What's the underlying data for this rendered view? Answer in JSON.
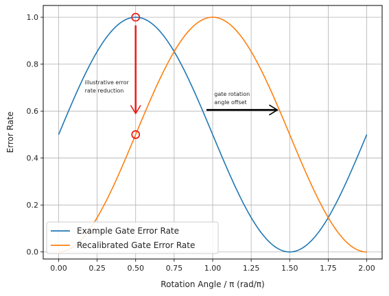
{
  "chart_data": {
    "type": "line",
    "title": "",
    "xlabel": "Rotation Angle / π (rad/π)",
    "ylabel": "Error Rate",
    "xlim": [
      -0.1,
      2.1
    ],
    "ylim": [
      -0.03,
      1.05
    ],
    "xticks": [
      0.0,
      0.25,
      0.5,
      0.75,
      1.0,
      1.25,
      1.5,
      1.75,
      2.0
    ],
    "xtick_labels": [
      "0.00",
      "0.25",
      "0.50",
      "0.75",
      "1.00",
      "1.25",
      "1.50",
      "1.75",
      "2.00"
    ],
    "yticks": [
      0.0,
      0.2,
      0.4,
      0.6,
      0.8,
      1.0
    ],
    "ytick_labels": [
      "0.0",
      "0.2",
      "0.4",
      "0.6",
      "0.8",
      "1.0"
    ],
    "grid": true,
    "legend_position": "lower-left",
    "series": [
      {
        "name": "Example Gate Error Rate",
        "color": "#1f77b4",
        "x": [
          0,
          0.125,
          0.25,
          0.375,
          0.5,
          0.625,
          0.75,
          0.875,
          1.0,
          1.125,
          1.25,
          1.375,
          1.5,
          1.625,
          1.75,
          1.875,
          2.0
        ],
        "y": [
          0.5,
          0.691,
          0.854,
          0.962,
          1.0,
          0.962,
          0.854,
          0.691,
          0.5,
          0.309,
          0.146,
          0.038,
          0.0,
          0.038,
          0.146,
          0.309,
          0.5
        ]
      },
      {
        "name": "Recalibrated Gate Error Rate",
        "color": "#ff7f0e",
        "x": [
          0,
          0.125,
          0.25,
          0.375,
          0.5,
          0.625,
          0.75,
          0.875,
          1.0,
          1.125,
          1.25,
          1.375,
          1.5,
          1.625,
          1.75,
          1.875,
          2.0
        ],
        "y": [
          0.0,
          0.038,
          0.146,
          0.309,
          0.5,
          0.691,
          0.854,
          0.962,
          1.0,
          0.962,
          0.854,
          0.691,
          0.5,
          0.309,
          0.146,
          0.038,
          0.0
        ]
      }
    ],
    "markers": [
      {
        "x": 0.5,
        "y": 1.0,
        "color": "#e8201c",
        "shape": "open-circle"
      },
      {
        "x": 0.5,
        "y": 0.5,
        "color": "#e8201c",
        "shape": "open-circle"
      }
    ],
    "arrows": [
      {
        "from": [
          0.5,
          0.965
        ],
        "to": [
          0.5,
          0.59
        ],
        "color": "#e8201c"
      },
      {
        "from": [
          0.96,
          0.605
        ],
        "to": [
          1.42,
          0.605
        ],
        "color": "#000000"
      }
    ],
    "annotations": [
      {
        "lines": [
          "illustrative error",
          "rate reduction"
        ],
        "x": 0.17,
        "y": 0.715
      },
      {
        "lines": [
          "gate rotation",
          "angle offset"
        ],
        "x": 1.01,
        "y": 0.665
      }
    ]
  }
}
